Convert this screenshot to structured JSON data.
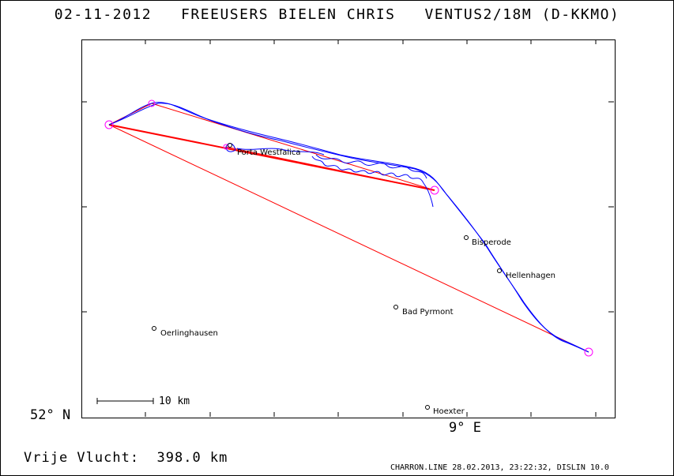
{
  "header": {
    "title": "02-11-2012   FREEUSERS BIELEN CHRIS   VENTUS2/18M (D-KKMO)"
  },
  "axes": {
    "lat_label": "52° N",
    "lon_label": "9° E"
  },
  "scale": {
    "label": "10 km"
  },
  "places": [
    {
      "name": "Porta Westfalica"
    },
    {
      "name": "Bisperode"
    },
    {
      "name": "Hellenhagen"
    },
    {
      "name": "Bad Pyrmont"
    },
    {
      "name": "Oerlinghausen"
    },
    {
      "name": "Hoexter"
    }
  ],
  "footer": {
    "flight_label": "Vrije Vlucht:  398.0 km",
    "credits": "CHARRON.LINE 28.02.2013, 23:22:32, DISLIN 10.0"
  },
  "colors": {
    "track": "#0000ff",
    "task": "#ff0000",
    "turnpoint": "#ff00ff"
  }
}
